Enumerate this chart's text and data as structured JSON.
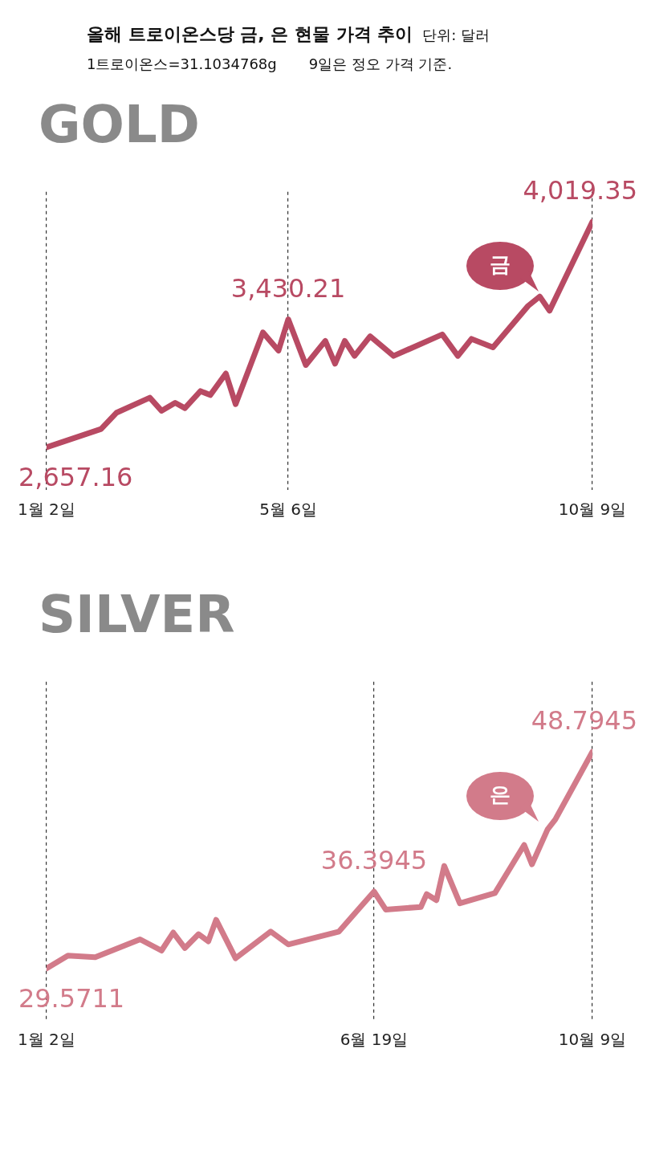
{
  "chart_data": [
    {
      "type": "line",
      "title": "GOLD",
      "subtitle": "올해 트로이온스당 금, 은 현물 가격 추이",
      "annotations": [
        "단위: 달러",
        "1트로이온스=31.1034768g",
        "9일은 정오 가격 기준."
      ],
      "x": [
        "--01-02",
        "--01-30",
        "--02-07",
        "--02-24",
        "--03-02",
        "--03-09",
        "--03-14",
        "--03-22",
        "--03-27",
        "--04-04",
        "--04-09",
        "--04-23",
        "--05-01",
        "--05-06",
        "--05-15",
        "--05-25",
        "--05-30",
        "--06-04",
        "--06-09",
        "--06-17",
        "--06-29",
        "--07-24",
        "--08-01",
        "--08-08",
        "--08-19",
        "--09-06",
        "--09-12",
        "--09-17",
        "--10-09"
      ],
      "series": [
        {
          "name": "금",
          "color": "#b84a63",
          "values": [
            2657.16,
            2768,
            2867,
            2957,
            2878,
            2926,
            2894,
            2997,
            2973,
            3103,
            2918,
            3351,
            3241,
            3430.21,
            3154,
            3300,
            3162,
            3300,
            3209,
            3328,
            3209,
            3339,
            3209,
            3312,
            3261,
            3511,
            3568,
            3482,
            4019.35
          ],
          "value_labels": [
            "2,657.16",
            null,
            null,
            null,
            null,
            null,
            null,
            null,
            null,
            null,
            null,
            null,
            null,
            "3,430.21",
            null,
            null,
            null,
            null,
            null,
            null,
            null,
            null,
            null,
            null,
            null,
            null,
            null,
            null,
            "4,019.35"
          ]
        }
      ],
      "xlim": [
        "--01-02",
        "--10-09"
      ],
      "xticks": [
        {
          "value": "--01-02",
          "label": "1월 2일"
        },
        {
          "value": "--05-06",
          "label": "5월 6일"
        },
        {
          "value": "--10-09",
          "label": "10월 9일"
        }
      ],
      "grid": "x"
    },
    {
      "type": "line",
      "title": "SILVER",
      "x": [
        "--01-02",
        "--01-13",
        "--01-27",
        "--02-19",
        "--03-02",
        "--03-08",
        "--03-14",
        "--03-21",
        "--03-26",
        "--03-30",
        "--04-09",
        "--04-27",
        "--05-06",
        "--06-01",
        "--06-12",
        "--06-19",
        "--06-25",
        "--07-13",
        "--07-16",
        "--07-21",
        "--07-25",
        "--08-02",
        "--08-20",
        "--09-04",
        "--09-08",
        "--09-16",
        "--09-20",
        "--10-09"
      ],
      "series": [
        {
          "name": "은",
          "color": "#d27b8a",
          "values": [
            29.5711,
            30.71,
            30.57,
            32.16,
            31.16,
            32.76,
            31.39,
            32.62,
            31.98,
            33.89,
            30.48,
            32.85,
            31.71,
            32.85,
            35.03,
            36.3945,
            34.8,
            35.03,
            36.17,
            35.63,
            38.67,
            35.35,
            36.26,
            40.53,
            38.81,
            41.91,
            42.8,
            48.7945
          ],
          "value_labels": [
            "29.5711",
            null,
            null,
            null,
            null,
            null,
            null,
            null,
            null,
            null,
            null,
            null,
            null,
            null,
            null,
            "36.3945",
            null,
            null,
            null,
            null,
            null,
            null,
            null,
            null,
            null,
            null,
            null,
            "48.7945"
          ]
        }
      ],
      "xlim": [
        "--01-02",
        "--10-09"
      ],
      "xticks": [
        {
          "value": "--01-02",
          "label": "1월 2일"
        },
        {
          "value": "--06-19",
          "label": "6월 19일"
        },
        {
          "value": "--10-09",
          "label": "10월 9일"
        }
      ],
      "grid": "x"
    }
  ]
}
